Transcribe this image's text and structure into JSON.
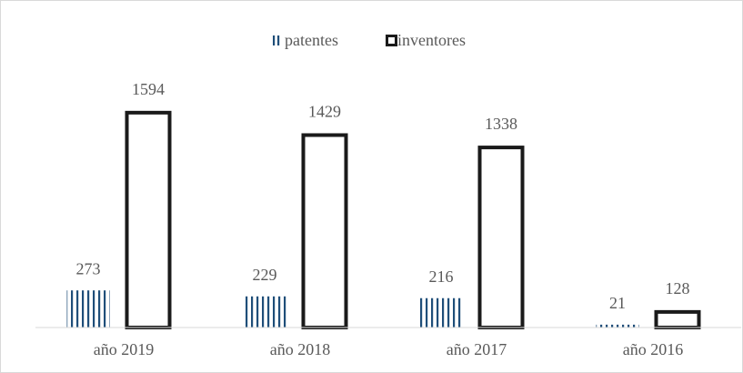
{
  "chart_data": {
    "type": "bar",
    "categories": [
      "año 2019",
      "año 2018",
      "año 2017",
      "año 2016"
    ],
    "series": [
      {
        "name": "patentes",
        "color": "#1f4e79",
        "values": [
          273,
          229,
          216,
          21
        ]
      },
      {
        "name": "inventores",
        "color": "#1a1a1a",
        "values": [
          1594,
          1429,
          1338,
          128
        ]
      }
    ],
    "ylim": [
      0,
      1700
    ],
    "legend": "top"
  }
}
